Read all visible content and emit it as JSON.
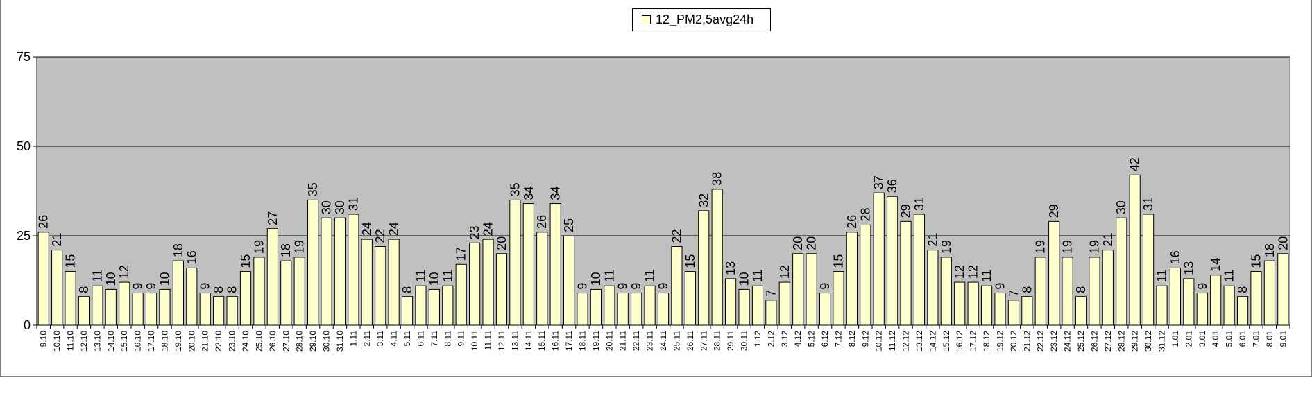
{
  "chart_data": {
    "type": "bar",
    "title": "",
    "xlabel": "",
    "ylabel": "",
    "ylim": [
      0,
      75
    ],
    "yticks": [
      0,
      25,
      50,
      75
    ],
    "grid": true,
    "legend_position": "top",
    "colors": {
      "bar_fill": "#ffffcc",
      "bar_stroke": "#000000",
      "plot_bg": "#c0c0c0",
      "gridline": "#000000"
    },
    "series": [
      {
        "name": "12_PM2,5avg24h",
        "values": [
          26,
          21,
          15,
          8,
          11,
          10,
          12,
          9,
          9,
          10,
          18,
          16,
          9,
          8,
          8,
          15,
          19,
          27,
          18,
          19,
          35,
          30,
          30,
          31,
          24,
          22,
          24,
          8,
          11,
          10,
          11,
          17,
          23,
          24,
          20,
          35,
          34,
          26,
          34,
          25,
          9,
          10,
          11,
          9,
          9,
          11,
          9,
          22,
          15,
          32,
          38,
          13,
          10,
          11,
          7,
          12,
          20,
          20,
          9,
          15,
          26,
          28,
          37,
          36,
          29,
          31,
          21,
          19,
          12,
          12,
          11,
          9,
          7,
          8,
          19,
          29,
          19,
          8,
          19,
          21,
          30,
          42,
          31,
          11,
          16,
          13,
          9,
          14,
          11,
          8,
          15,
          18,
          20
        ]
      }
    ],
    "categories": [
      "9.10",
      "10.10",
      "11.10",
      "12.10",
      "13.10",
      "14.10",
      "15.10",
      "16.10",
      "17.10",
      "18.10",
      "19.10",
      "20.10",
      "21.10",
      "22.10",
      "23.10",
      "24.10",
      "25.10",
      "26.10",
      "27.10",
      "28.10",
      "29.10",
      "30.10",
      "31.10",
      "1.11",
      "2.11",
      "3.11",
      "4.11",
      "5.11",
      "6.11",
      "7.11",
      "8.11",
      "9.11",
      "10.11",
      "11.11",
      "12.11",
      "13.11",
      "14.11",
      "15.11",
      "16.11",
      "17.11",
      "18.11",
      "19.11",
      "20.11",
      "21.11",
      "22.11",
      "23.11",
      "24.11",
      "25.11",
      "26.11",
      "27.11",
      "28.11",
      "29.11",
      "30.11",
      "1.12",
      "2.12",
      "3.12",
      "4.12",
      "5.12",
      "6.12",
      "7.12",
      "8.12",
      "9.12",
      "10.12",
      "11.12",
      "12.12",
      "13.12",
      "14.12",
      "15.12",
      "16.12",
      "17.12",
      "18.12",
      "19.12",
      "20.12",
      "21.12",
      "22.12",
      "23.12",
      "24.12",
      "25.12",
      "26.12",
      "27.12",
      "28.12",
      "29.12",
      "30.12",
      "31.12",
      "1.01",
      "2.01",
      "3.01",
      "4.01",
      "5.01",
      "6.01",
      "7.01",
      "8.01",
      "9.01"
    ]
  }
}
